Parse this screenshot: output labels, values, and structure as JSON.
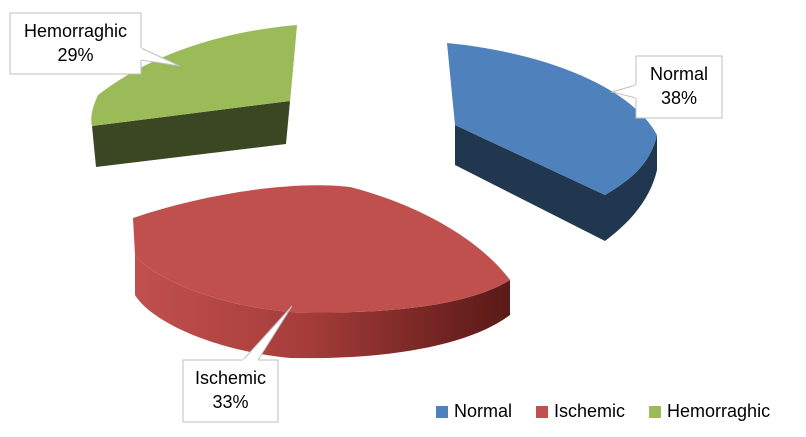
{
  "chart_data": {
    "type": "pie",
    "style": "3d-exploded",
    "categories": [
      "Normal",
      "Ischemic",
      "Hemorraghic"
    ],
    "values": [
      38,
      33,
      29
    ],
    "unit": "%",
    "colors": {
      "Normal": "#4F81BD",
      "Ischemic": "#C0504D",
      "Hemorraghic": "#9BBB59"
    },
    "data_labels": [
      {
        "name": "Normal",
        "value": "38%"
      },
      {
        "name": "Ischemic",
        "value": "33%"
      },
      {
        "name": "Hemorraghic",
        "value": "29%"
      }
    ],
    "legend": {
      "position": "bottom-right",
      "entries": [
        "Normal",
        "Ischemic",
        "Hemorraghic"
      ]
    }
  }
}
